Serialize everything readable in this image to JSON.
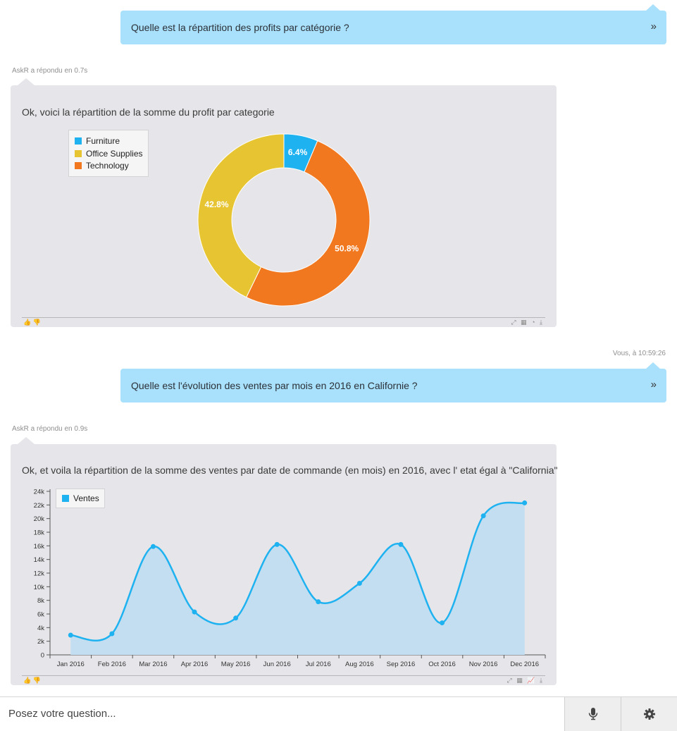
{
  "conversation": {
    "q1": {
      "text": "Quelle est la répartition des profits par catégorie ?",
      "send_icon": "»"
    },
    "a1": {
      "meta": "AskR a répondu en 0.7s",
      "message": "Ok, voici la répartition de la somme du profit par categorie"
    },
    "q2": {
      "meta": "Vous, à 10:59:26",
      "text": "Quelle est l'évolution des ventes par mois en 2016 en Californie ?",
      "send_icon": "»"
    },
    "a2": {
      "meta": "AskR a répondu en 0.9s",
      "message": "Ok, et voila la répartition de la somme des ventes par date de commande (en mois) en 2016, avec l' etat égal à \"California\""
    },
    "footer_icons": {
      "thumbs_up": "👍",
      "thumbs_down": "👎",
      "expand": "⤢",
      "table": "▦",
      "chart": "◔",
      "line": "📈",
      "download": "⤓"
    }
  },
  "chart_data": [
    {
      "type": "pie",
      "subtype": "donut",
      "categories": [
        "Furniture",
        "Office Supplies",
        "Technology"
      ],
      "values": [
        6.4,
        42.8,
        50.8
      ],
      "labels": [
        "6.4%",
        "42.8%",
        "50.8%"
      ],
      "colors": [
        "#1fb2f1",
        "#e7c532",
        "#f1781f"
      ],
      "legend": "top-left"
    },
    {
      "type": "area",
      "series": [
        {
          "name": "Ventes",
          "values": [
            2900,
            3100,
            15900,
            6300,
            5400,
            16200,
            7800,
            10500,
            16200,
            4700,
            20400,
            22300
          ]
        }
      ],
      "categories": [
        "Jan 2016",
        "Feb 2016",
        "Mar 2016",
        "Apr 2016",
        "May 2016",
        "Jun 2016",
        "Jul 2016",
        "Aug 2016",
        "Sep 2016",
        "Oct 2016",
        "Nov 2016",
        "Dec 2016"
      ],
      "y_ticks": [
        "0",
        "2k",
        "4k",
        "6k",
        "8k",
        "10k",
        "12k",
        "14k",
        "16k",
        "18k",
        "20k",
        "22k",
        "24k"
      ],
      "ylim": [
        0,
        24000
      ],
      "color": "#1fb2f1",
      "fill_color": "#c3def0",
      "legend": "top-left"
    }
  ],
  "input": {
    "placeholder": "Posez votre question..."
  },
  "buttons": {
    "mic_icon": "mic-icon",
    "settings_icon": "gear-icon"
  }
}
